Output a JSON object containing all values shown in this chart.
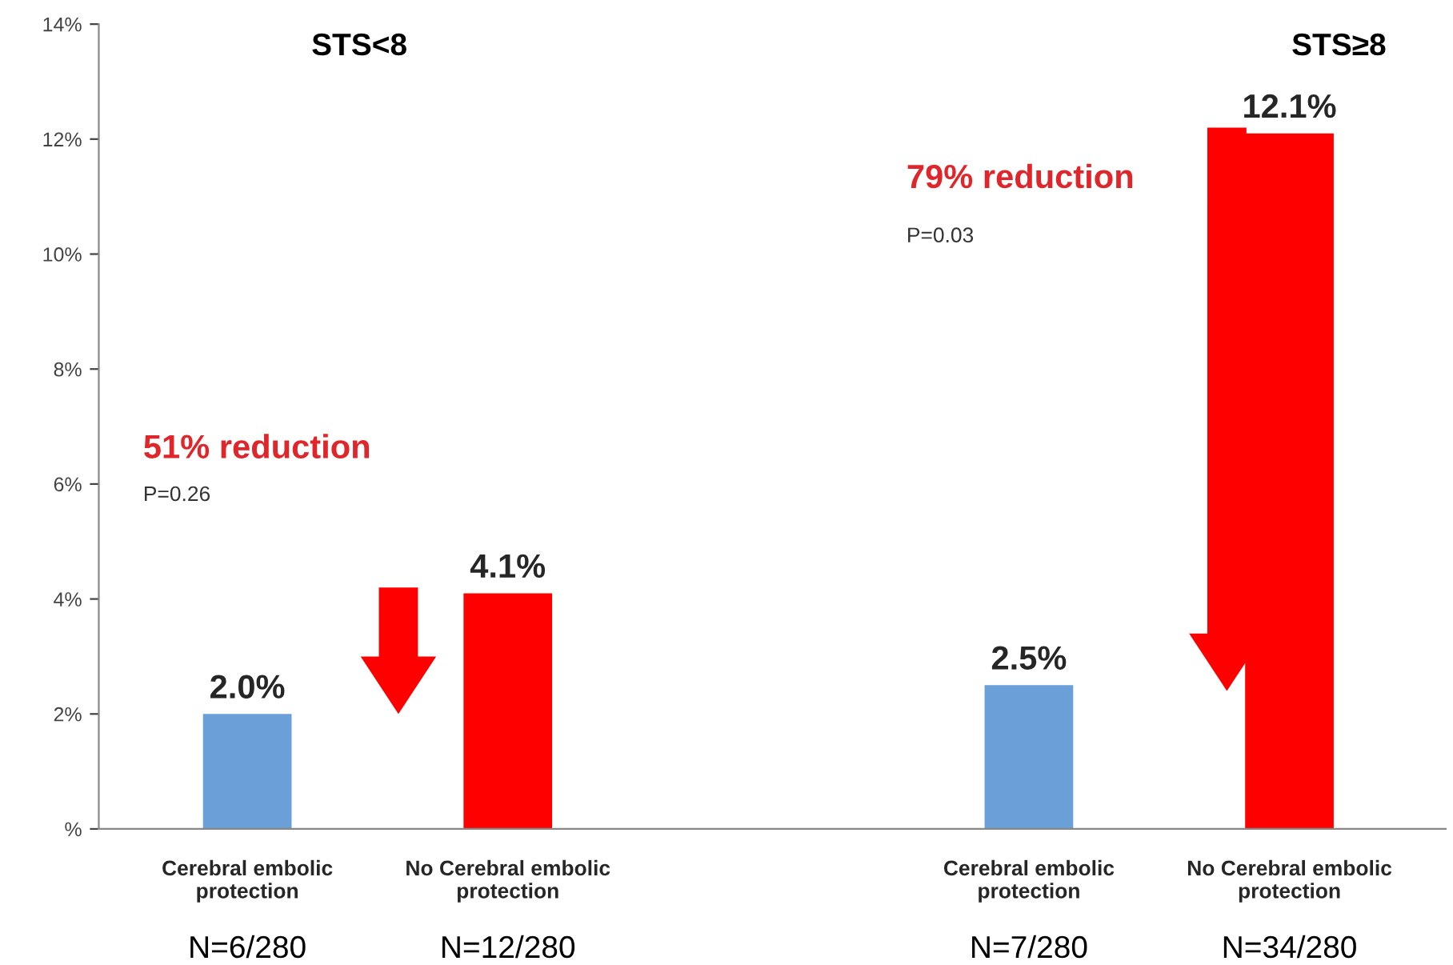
{
  "chart_data": {
    "type": "bar",
    "categories": [
      "Cerebral embolic\nprotection",
      "No Cerebral embolic\nprotection",
      null,
      "Cerebral embolic\nprotection",
      "No Cerebral embolic\nprotection"
    ],
    "values": [
      2.0,
      4.1,
      null,
      2.5,
      12.1
    ],
    "colors": [
      "#6a9fd8",
      "#ff0000",
      null,
      "#6a9fd8",
      "#ff0000"
    ],
    "value_labels": [
      "2.0%",
      "4.1%",
      null,
      "2.5%",
      "12.1%"
    ],
    "ylim": [
      0,
      14
    ],
    "yticks": [
      {
        "value": 0,
        "label": "%"
      },
      {
        "value": 2,
        "label": "2%"
      },
      {
        "value": 4,
        "label": "4%"
      },
      {
        "value": 6,
        "label": "6%"
      },
      {
        "value": 8,
        "label": "8%"
      },
      {
        "value": 10,
        "label": "10%"
      },
      {
        "value": 12,
        "label": "12%"
      },
      {
        "value": 14,
        "label": "14%"
      }
    ],
    "grid": false,
    "annotations": [
      "STS<8",
      "STS≥8",
      "51% reduction",
      "P=0.26",
      "79% reduction",
      "P=0.03",
      "N=6/280",
      "N=12/280",
      "N=7/280",
      "N=34/280"
    ]
  }
}
